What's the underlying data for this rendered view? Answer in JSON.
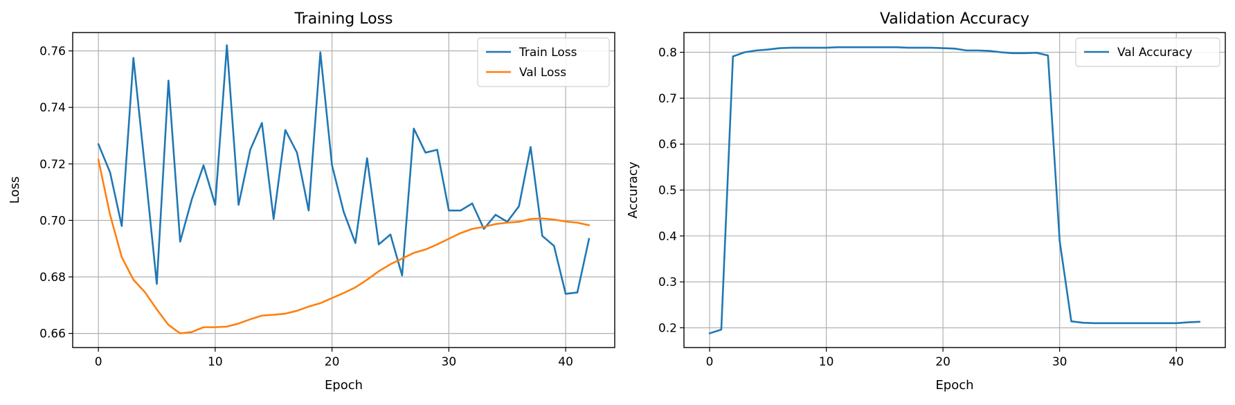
{
  "chart_data": [
    {
      "type": "line",
      "title": "Training Loss",
      "xlabel": "Epoch",
      "ylabel": "Loss",
      "xlim": [
        -2.2,
        44.2
      ],
      "ylim": [
        0.655,
        0.7665
      ],
      "xticks": [
        0,
        10,
        20,
        30,
        40
      ],
      "yticks": [
        0.66,
        0.68,
        0.7,
        0.72,
        0.74,
        0.76
      ],
      "ytick_labels": [
        "0.66",
        "0.68",
        "0.70",
        "0.72",
        "0.74",
        "0.76"
      ],
      "grid": true,
      "legend_position": "top-right",
      "x": [
        0,
        1,
        2,
        3,
        4,
        5,
        6,
        7,
        8,
        9,
        10,
        11,
        12,
        13,
        14,
        15,
        16,
        17,
        18,
        19,
        20,
        21,
        22,
        23,
        24,
        25,
        26,
        27,
        28,
        29,
        30,
        31,
        32,
        33,
        34,
        35,
        36,
        37,
        38,
        39,
        40,
        41,
        42
      ],
      "series": [
        {
          "name": "Train Loss",
          "color": "#1f77b4",
          "values": [
            0.727,
            0.717,
            0.698,
            0.7575,
            0.718,
            0.6775,
            0.7495,
            0.6925,
            0.7075,
            0.7195,
            0.7055,
            0.762,
            0.7055,
            0.725,
            0.7345,
            0.7005,
            0.732,
            0.724,
            0.7035,
            0.7595,
            0.7195,
            0.703,
            0.692,
            0.722,
            0.6915,
            0.695,
            0.6805,
            0.7325,
            0.724,
            0.725,
            0.7035,
            0.7035,
            0.706,
            0.697,
            0.702,
            0.6995,
            0.705,
            0.726,
            0.6945,
            0.691,
            0.674,
            0.6745,
            0.6935
          ]
        },
        {
          "name": "Val Loss",
          "color": "#ff7f0e",
          "values": [
            0.7215,
            0.702,
            0.687,
            0.679,
            0.6745,
            0.6685,
            0.663,
            0.66,
            0.6605,
            0.6622,
            0.6622,
            0.6624,
            0.6635,
            0.665,
            0.6663,
            0.6666,
            0.667,
            0.668,
            0.6695,
            0.6707,
            0.6725,
            0.6743,
            0.6763,
            0.679,
            0.682,
            0.6845,
            0.6865,
            0.6885,
            0.6897,
            0.6915,
            0.6935,
            0.6955,
            0.697,
            0.6977,
            0.6987,
            0.6992,
            0.6995,
            0.7005,
            0.7007,
            0.7003,
            0.6996,
            0.6992,
            0.6983
          ]
        }
      ]
    },
    {
      "type": "line",
      "title": "Validation Accuracy",
      "xlabel": "Epoch",
      "ylabel": "Accuracy",
      "xlim": [
        -2.2,
        44.2
      ],
      "ylim": [
        0.157,
        0.843
      ],
      "xticks": [
        0,
        10,
        20,
        30,
        40
      ],
      "yticks": [
        0.2,
        0.3,
        0.4,
        0.5,
        0.6,
        0.7,
        0.8
      ],
      "ytick_labels": [
        "0.2",
        "0.3",
        "0.4",
        "0.5",
        "0.6",
        "0.7",
        "0.8"
      ],
      "grid": true,
      "legend_position": "top-right",
      "x": [
        0,
        1,
        2,
        3,
        4,
        5,
        6,
        7,
        8,
        9,
        10,
        11,
        12,
        13,
        14,
        15,
        16,
        17,
        18,
        19,
        20,
        21,
        22,
        23,
        24,
        25,
        26,
        27,
        28,
        29,
        30,
        31,
        32,
        33,
        34,
        35,
        36,
        37,
        38,
        39,
        40,
        41,
        42
      ],
      "series": [
        {
          "name": "Val Accuracy",
          "color": "#1f77b4",
          "values": [
            0.188,
            0.196,
            0.791,
            0.8,
            0.804,
            0.806,
            0.809,
            0.81,
            0.81,
            0.81,
            0.81,
            0.811,
            0.811,
            0.811,
            0.811,
            0.811,
            0.811,
            0.81,
            0.81,
            0.81,
            0.809,
            0.808,
            0.804,
            0.804,
            0.803,
            0.8,
            0.798,
            0.798,
            0.799,
            0.793,
            0.39,
            0.214,
            0.211,
            0.21,
            0.21,
            0.21,
            0.21,
            0.21,
            0.21,
            0.21,
            0.21,
            0.212,
            0.213
          ]
        }
      ]
    }
  ]
}
